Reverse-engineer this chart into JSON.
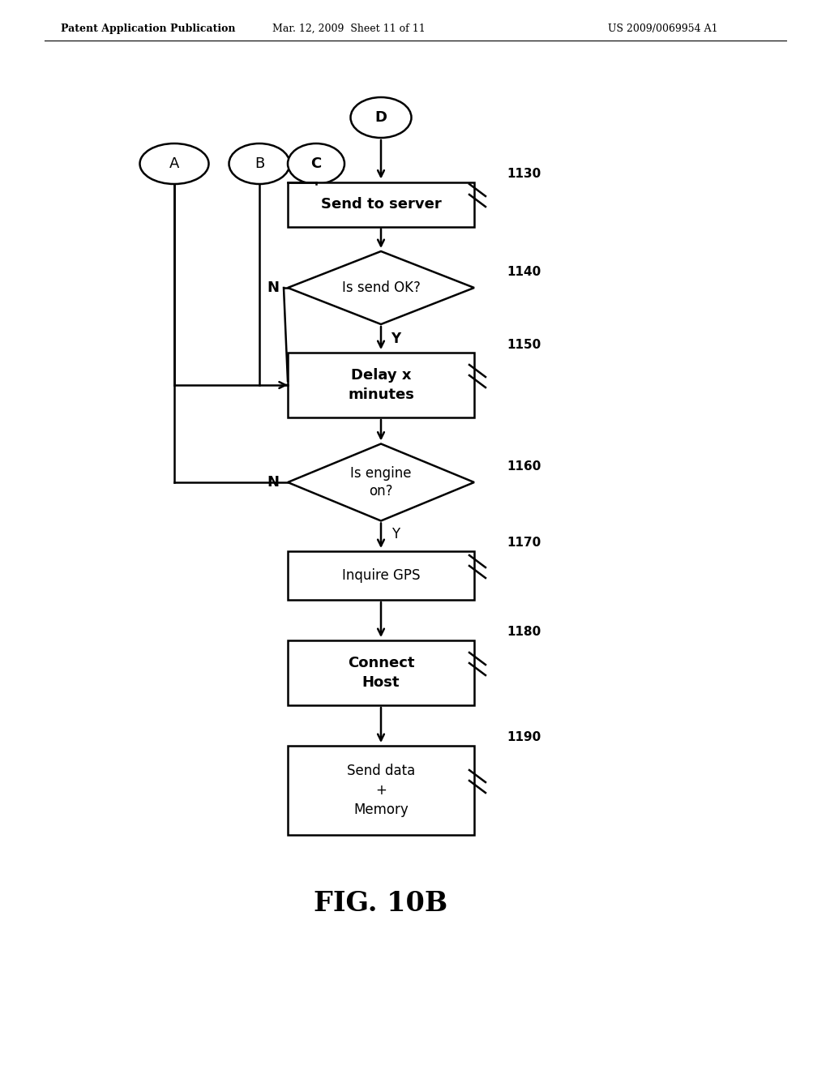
{
  "header_left": "Patent Application Publication",
  "header_mid": "Mar. 12, 2009  Sheet 11 of 11",
  "header_right": "US 2009/0069954 A1",
  "figure_label": "FIG. 10B",
  "background_color": "#ffffff"
}
